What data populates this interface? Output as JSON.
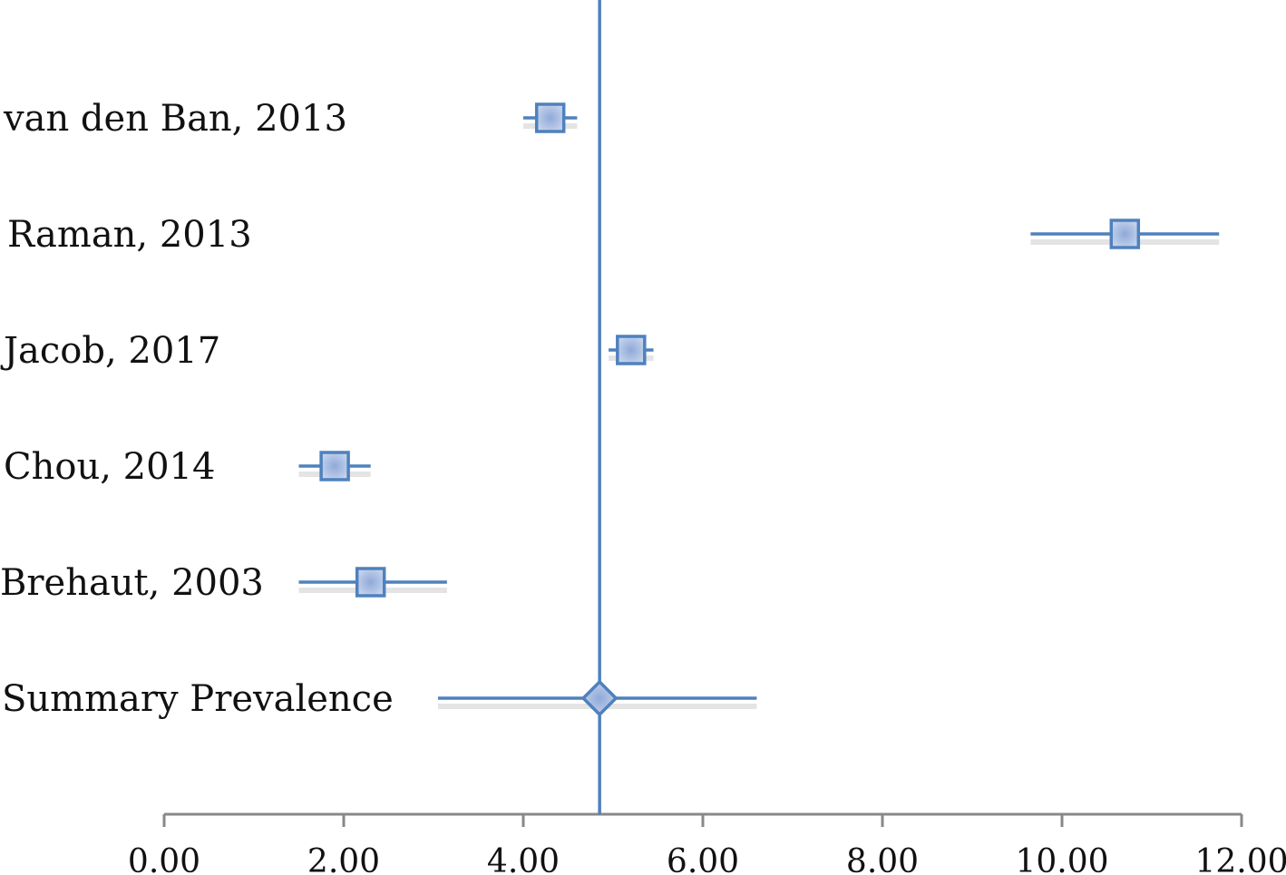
{
  "chart_data": {
    "type": "forest",
    "x_range": [
      0,
      12
    ],
    "x_ticks": [
      "0.00",
      "2.00",
      "4.00",
      "6.00",
      "8.00",
      "10.00",
      "12.00"
    ],
    "reference_line": 4.85,
    "studies": [
      {
        "label": "van den Ban, 2013",
        "estimate": 4.3,
        "lower": 4.0,
        "upper": 4.6,
        "marker": "square"
      },
      {
        "label": "Raman, 2013",
        "estimate": 10.7,
        "lower": 9.65,
        "upper": 11.75,
        "marker": "square"
      },
      {
        "label": "Jacob, 2017",
        "estimate": 5.2,
        "lower": 4.95,
        "upper": 5.45,
        "marker": "square"
      },
      {
        "label": "Chou, 2014",
        "estimate": 1.9,
        "lower": 1.5,
        "upper": 2.3,
        "marker": "square"
      },
      {
        "label": "Brehaut, 2003",
        "estimate": 2.3,
        "lower": 1.5,
        "upper": 3.15,
        "marker": "square"
      },
      {
        "label": "Summary Prevalence",
        "estimate": 4.85,
        "lower": 3.05,
        "upper": 6.6,
        "marker": "diamond"
      }
    ],
    "colors": {
      "line": "#4F81BD",
      "marker_fill": "#B8CCE4",
      "axis": "#888888"
    }
  }
}
